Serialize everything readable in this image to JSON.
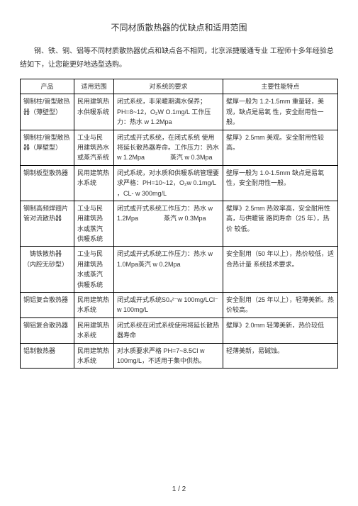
{
  "doc": {
    "title": "不同材质散热器的优缺点和适用范围",
    "intro": "钢、铁、铜、铝等不同材质散热器优点和缺点各不相同，北京派捷暖通专业 工程师十多年经验总结如下，让您能更好地选型选购。",
    "footer": "1 / 2",
    "headers": {
      "c1": "产品",
      "c2": "适用范围",
      "c3": "对系统的要求",
      "c4": "主要性能特点"
    },
    "rows": {
      "r1": {
        "c1": "钢制柱/管型散热器（薄壁型）",
        "c2": "民用建筑热水供暖系统",
        "c3": "闭式系统，非采暖期满水保养；PH=8~12，O₂W O.1mg/L 工作压力：热水 w 1.2Mpa",
        "c4": "壁厚一般为 1.2-1.5mm 重量轻，美观，缺点是易氧 性，安全耐用性一般。"
      },
      "r2": {
        "c1": "钢制柱/管型散热器（厚壁型）",
        "c2": "工业与民 用建筑热水或蒸汽系统",
        "c3": "闭式或开式系统，在闭式系统 使用将延长散热器寿命。工作压力：热水 w 1.2Mpa　　　　蒸汽 w 0.3Mpa",
        "c4": "壁厚》2.5mm 美观。安全耐用性较高。"
      },
      "r3": {
        "c1": "钢制板型散热器",
        "c2": "民用建筑热水系统",
        "c3": "闭式系统，对水质和供暖系统管理要求严格：PH=10~12，O₂w 0.1mg/L ，CL- w 300mg/L",
        "c4": "壁厚一般为 1.0-1.5mm 缺点是易氧 性，安全耐用性一般。"
      },
      "r4": {
        "c1": "钢制高频焊翅片管对流散热器",
        "c2": "工业与民 用建筑热 水或蒸汽 供暖系统",
        "c3": "闭式或开式系统工作压力：热水 w 1.2Mpa　　　　蒸汽 w 0.3Mpa",
        "c4": "壁厚》2.5mm 热效率高，安全耐用性高，与供暖管 路同寿命（25 年），热价 较低。"
      },
      "r5": {
        "c1": "　铸铁散热器　（内腔无砂型）",
        "c2": "工业与民 用建筑热 水或蒸汽 供暖系统",
        "c3": "闭式或开式系统工作压力：热水 w 1.0Mpa蒸汽 w 0.2Mpa",
        "c4": "安全耐用（50 年以上），热价较低，适合热计量 系统技术要求。"
      },
      "r6": {
        "c1": "铜铝复合散热器",
        "c2": "民用建筑热水系统",
        "c3": "闭式或开式系统S0₄²⁻w 100mg/LCl⁻ w 100mg/L",
        "c4": "安全耐用（25 年以上），轻薄美新。热价较高。"
      },
      "r7": {
        "c1": "钢铝复合散热器",
        "c2": "民用建筑热水系统",
        "c3": "闭式系统在闭式系统使用将延长散热 器寿命",
        "c4": "壁厚》2.0mm 轻薄美新，热价较低"
      },
      "r8": {
        "c1": "铝制散热器",
        "c2": "民用建筑热水系统",
        "c3": "对水质要求严格 PH=7~8.5Cl w 100mg/L，不适用于集中供热。",
        "c4": "轻薄美新，易碱蚀。"
      }
    }
  }
}
